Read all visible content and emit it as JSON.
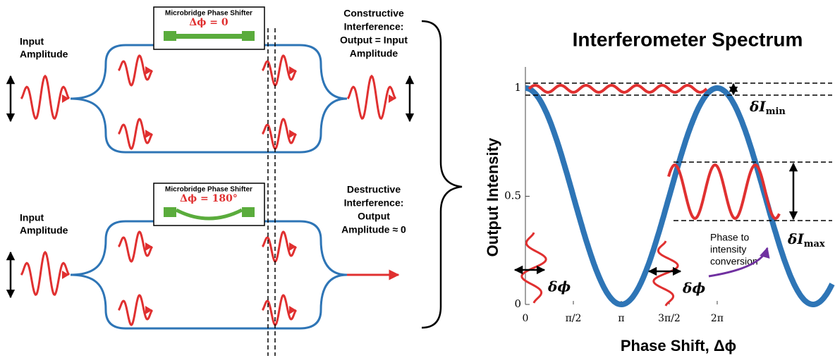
{
  "top_interferometer": {
    "phase_shifter": {
      "label": "Microbridge Phase Shifter",
      "phase": "Δϕ = 0"
    },
    "input_label": [
      "Input",
      "Amplitude"
    ],
    "output_label": [
      "Constructive",
      "Interference:",
      "Output = Input",
      "Amplitude"
    ]
  },
  "bottom_interferometer": {
    "phase_shifter": {
      "label": "Microbridge Phase Shifter",
      "phase": "Δϕ = 180°"
    },
    "input_label": [
      "Input",
      "Amplitude"
    ],
    "output_label": [
      "Destructive",
      "Interference:",
      "Output",
      "Amplitude ≈ 0"
    ]
  },
  "chart_data": {
    "type": "line",
    "title": "Interferometer Spectrum",
    "xlabel": "Phase Shift, Δϕ",
    "ylabel": "Output Intensity",
    "xlim": [
      0,
      10.05
    ],
    "ylim": [
      0,
      1
    ],
    "xticks": [
      0,
      {
        "value": 1.5708,
        "label": "π/2"
      },
      {
        "value": 3.1416,
        "label": "π"
      },
      {
        "value": 4.7124,
        "label": "3π/2"
      },
      {
        "value": 6.2832,
        "label": "2π"
      }
    ],
    "yticks": [
      0,
      0.5,
      1
    ],
    "annotations": {
      "delta_i_min": {
        "text": "δI",
        "subscript": "min"
      },
      "delta_i_max": {
        "text": "δI",
        "subscript": "max"
      },
      "delta_phi": "δϕ",
      "conversion": [
        "Phase to",
        "intensity",
        "conversion"
      ]
    }
  }
}
